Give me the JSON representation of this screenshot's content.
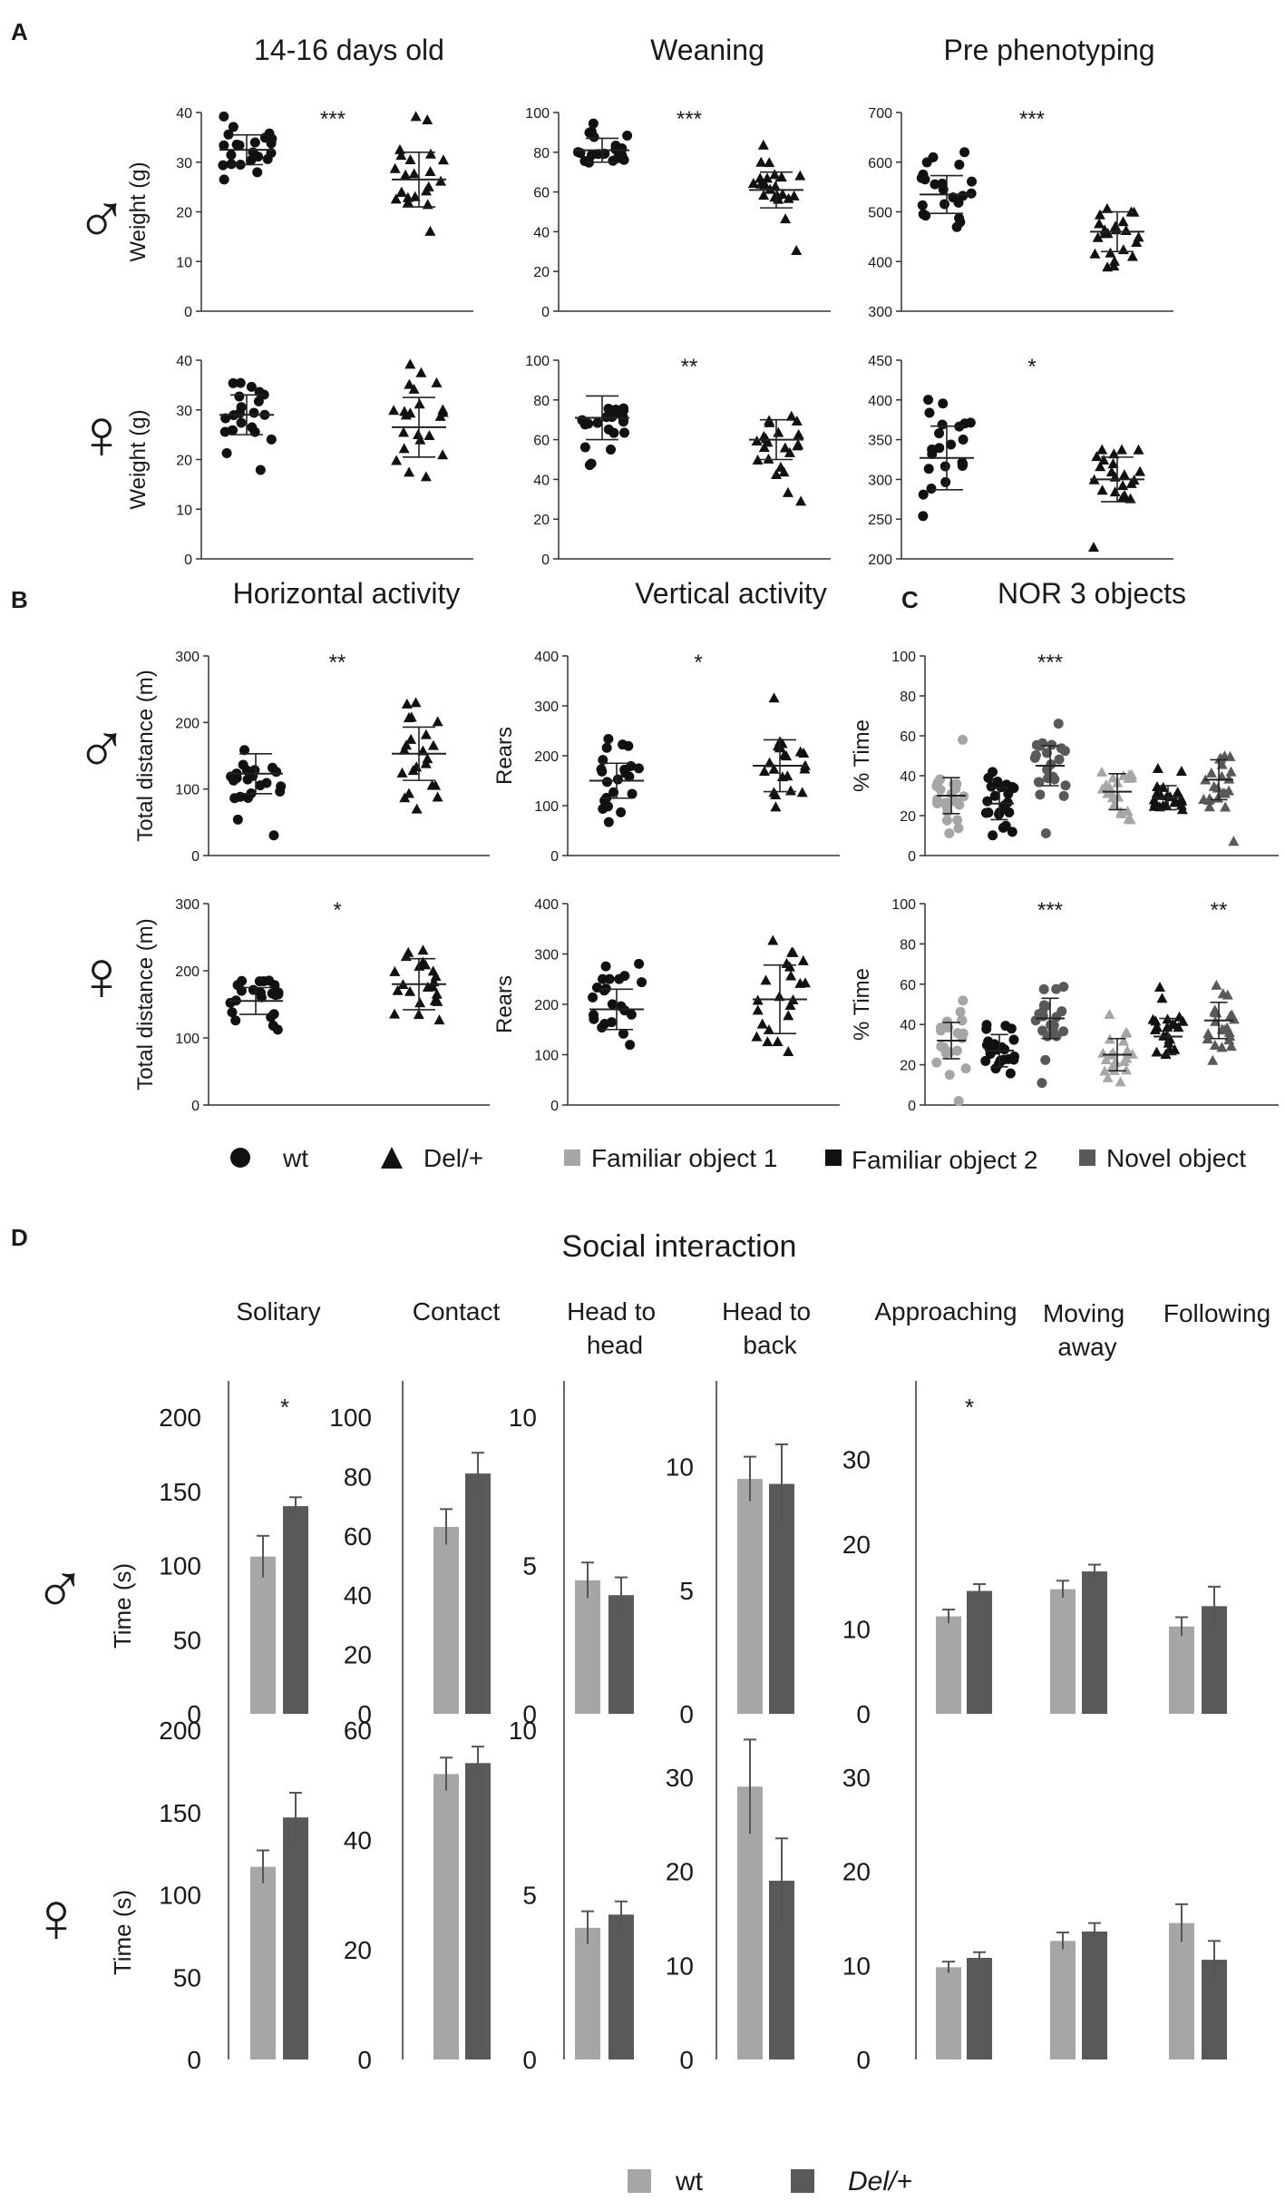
{
  "colors": {
    "wt_bar": "#a6a6a6",
    "del_bar": "#595959",
    "familiar1": "#a6a6a6",
    "familiar2": "#111111",
    "novel": "#595959",
    "axis": "#333333"
  },
  "figure": {
    "panel_labels": [
      "A",
      "B",
      "C",
      "D"
    ],
    "male_symbol": "♂",
    "female_symbol": "♀",
    "panelA": {
      "titles": [
        "14-16 days old",
        "Weaning",
        "Pre phenotyping"
      ],
      "ylabel": "Weight (g)"
    },
    "panelB": {
      "titles": [
        "Horizontal activity",
        "Vertical activity"
      ],
      "ylabels": [
        "Total distance (m)",
        "Rears"
      ]
    },
    "panelC": {
      "title": "NOR 3 objects",
      "ylabel": "% Time"
    },
    "legend1": {
      "wt": "wt",
      "del": "Del/+",
      "fam1": "Familiar object 1",
      "fam2": "Familiar object 2",
      "novel": "Novel object"
    },
    "panelD": {
      "title": "Social interaction",
      "categories": [
        "Solitary",
        "Contact",
        "Head to head",
        "Head to back",
        "Approaching",
        "Moving away",
        "Following"
      ],
      "ylabel": "Time (s)"
    },
    "legend2": {
      "wt": "wt",
      "del": "Del/+"
    }
  },
  "chart_data": [
    {
      "id": "a-m-1416",
      "type": "scatter",
      "title": "14-16 days old",
      "sex": "male",
      "ylabel": "Weight (g)",
      "ylim": [
        0,
        40
      ],
      "yticks": [
        0,
        10,
        20,
        30,
        40
      ],
      "groups": [
        {
          "name": "wt",
          "mean": 32.5,
          "sd": 3
        },
        {
          "name": "Del/+",
          "mean": 26.5,
          "sd": 5.5
        }
      ],
      "significance": "***"
    },
    {
      "id": "a-m-wean",
      "type": "scatter",
      "title": "Weaning",
      "sex": "male",
      "ylabel": "Weight (g)",
      "ylim": [
        0,
        100
      ],
      "yticks": [
        0,
        20,
        40,
        60,
        80,
        100
      ],
      "groups": [
        {
          "name": "wt",
          "mean": 81,
          "sd": 6
        },
        {
          "name": "Del/+",
          "mean": 61,
          "sd": 9
        }
      ],
      "significance": "***"
    },
    {
      "id": "a-m-pre",
      "type": "scatter",
      "title": "Pre phenotyping",
      "sex": "male",
      "ylabel": "Weight (g)",
      "ylim": [
        300,
        700
      ],
      "yticks": [
        300,
        400,
        500,
        600,
        700
      ],
      "groups": [
        {
          "name": "wt",
          "mean": 535,
          "sd": 38
        },
        {
          "name": "Del/+",
          "mean": 460,
          "sd": 40
        }
      ],
      "significance": "***"
    },
    {
      "id": "a-f-1416",
      "type": "scatter",
      "title": "14-16 days old",
      "sex": "female",
      "ylabel": "Weight (g)",
      "ylim": [
        0,
        40
      ],
      "yticks": [
        0,
        10,
        20,
        30,
        40
      ],
      "groups": [
        {
          "name": "wt",
          "mean": 29,
          "sd": 4
        },
        {
          "name": "Del/+",
          "mean": 26.5,
          "sd": 6
        }
      ],
      "significance": ""
    },
    {
      "id": "a-f-wean",
      "type": "scatter",
      "title": "Weaning",
      "sex": "female",
      "ylabel": "Weight (g)",
      "ylim": [
        0,
        100
      ],
      "yticks": [
        0,
        20,
        40,
        60,
        80,
        100
      ],
      "groups": [
        {
          "name": "wt",
          "mean": 71,
          "sd": 11
        },
        {
          "name": "Del/+",
          "mean": 60,
          "sd": 10
        }
      ],
      "significance": "**"
    },
    {
      "id": "a-f-pre",
      "type": "scatter",
      "title": "Pre phenotyping",
      "sex": "female",
      "ylabel": "Weight (g)",
      "ylim": [
        200,
        450
      ],
      "yticks": [
        200,
        250,
        300,
        350,
        400,
        450
      ],
      "groups": [
        {
          "name": "wt",
          "mean": 327,
          "sd": 40
        },
        {
          "name": "Del/+",
          "mean": 300,
          "sd": 28
        }
      ],
      "significance": "*"
    },
    {
      "id": "b-m-horiz",
      "type": "scatter",
      "title": "Horizontal activity",
      "sex": "male",
      "ylabel": "Total distance (m)",
      "ylim": [
        0,
        300
      ],
      "yticks": [
        0,
        100,
        200,
        300
      ],
      "groups": [
        {
          "name": "wt",
          "mean": 123,
          "sd": 30
        },
        {
          "name": "Del/+",
          "mean": 153,
          "sd": 40
        }
      ],
      "significance": "**"
    },
    {
      "id": "b-m-vert",
      "type": "scatter",
      "title": "Vertical activity",
      "sex": "male",
      "ylabel": "Rears",
      "ylim": [
        0,
        400
      ],
      "yticks": [
        0,
        100,
        200,
        300,
        400
      ],
      "groups": [
        {
          "name": "wt",
          "mean": 150,
          "sd": 35
        },
        {
          "name": "Del/+",
          "mean": 180,
          "sd": 52
        }
      ],
      "significance": "*"
    },
    {
      "id": "b-f-horiz",
      "type": "scatter",
      "title": "Horizontal activity",
      "sex": "female",
      "ylabel": "Total distance (m)",
      "ylim": [
        0,
        300
      ],
      "yticks": [
        0,
        100,
        200,
        300
      ],
      "groups": [
        {
          "name": "wt",
          "mean": 155,
          "sd": 20
        },
        {
          "name": "Del/+",
          "mean": 180,
          "sd": 38
        }
      ],
      "significance": "*"
    },
    {
      "id": "b-f-vert",
      "type": "scatter",
      "title": "Vertical activity",
      "sex": "female",
      "ylabel": "Rears",
      "ylim": [
        0,
        400
      ],
      "yticks": [
        0,
        100,
        200,
        300,
        400
      ],
      "groups": [
        {
          "name": "wt",
          "mean": 190,
          "sd": 40
        },
        {
          "name": "Del/+",
          "mean": 210,
          "sd": 68
        }
      ],
      "significance": ""
    },
    {
      "id": "c-m-nor",
      "type": "scatter",
      "title": "NOR 3 objects",
      "sex": "male",
      "ylabel": "% Time",
      "ylim": [
        0,
        100
      ],
      "yticks": [
        0,
        20,
        40,
        60,
        80,
        100
      ],
      "groups": [
        {
          "name": "wt Familiar object 1",
          "mean": 30,
          "sd": 9
        },
        {
          "name": "wt Familiar object 2",
          "mean": 26,
          "sd": 8
        },
        {
          "name": "wt Novel object",
          "mean": 45,
          "sd": 10
        },
        {
          "name": "Del/+ Familiar object 1",
          "mean": 32,
          "sd": 9
        },
        {
          "name": "Del/+ Familiar object 2",
          "mean": 29,
          "sd": 6
        },
        {
          "name": "Del/+ Novel object",
          "mean": 38,
          "sd": 10
        }
      ],
      "significance": "***"
    },
    {
      "id": "c-f-nor",
      "type": "scatter",
      "title": "NOR 3 objects",
      "sex": "female",
      "ylabel": "% Time",
      "ylim": [
        0,
        100
      ],
      "yticks": [
        0,
        20,
        40,
        60,
        80,
        100
      ],
      "groups": [
        {
          "name": "wt Familiar object 1",
          "mean": 32,
          "sd": 9
        },
        {
          "name": "wt Familiar object 2",
          "mean": 27,
          "sd": 8
        },
        {
          "name": "wt Novel object",
          "mean": 43,
          "sd": 10
        },
        {
          "name": "Del/+ Familiar object 1",
          "mean": 25,
          "sd": 8
        },
        {
          "name": "Del/+ Familiar object 2",
          "mean": 34,
          "sd": 9
        },
        {
          "name": "Del/+ Novel object",
          "mean": 42,
          "sd": 9
        }
      ],
      "significance": "***  **"
    },
    {
      "id": "d-m-social",
      "type": "bar",
      "title": "Social interaction",
      "sex": "male",
      "ylabel": "Time (s)",
      "series": [
        {
          "name": "wt"
        },
        {
          "name": "Del/+"
        }
      ],
      "subplots": [
        {
          "category": "Solitary",
          "ylim": [
            0,
            200
          ],
          "yticks": [
            0,
            50,
            100,
            150,
            200
          ],
          "wt": 106,
          "wt_err": 14,
          "del": 140,
          "del_err": 6,
          "sig": "*"
        },
        {
          "category": "Contact",
          "ylim": [
            0,
            100
          ],
          "yticks": [
            0,
            20,
            40,
            60,
            80,
            100
          ],
          "wt": 63,
          "wt_err": 6,
          "del": 81,
          "del_err": 7,
          "sig": ""
        },
        {
          "category": "Head to head",
          "ylim": [
            0,
            10
          ],
          "yticks": [
            0,
            5,
            10
          ],
          "wt": 4.5,
          "wt_err": 0.6,
          "del": 4.0,
          "del_err": 0.6,
          "sig": ""
        },
        {
          "category": "Head to back",
          "ylim": [
            0,
            12
          ],
          "yticks": [
            0,
            5,
            10
          ],
          "wt": 9.5,
          "wt_err": 0.9,
          "del": 9.3,
          "del_err": 1.6,
          "sig": ""
        },
        {
          "category": "Approaching",
          "ylim": [
            0,
            35
          ],
          "yticks": [
            0,
            10,
            20,
            30
          ],
          "wt": 11.5,
          "wt_err": 0.8,
          "del": 14.5,
          "del_err": 0.8,
          "sig": "*"
        },
        {
          "category": "Moving away",
          "ylim": [
            0,
            35
          ],
          "yticks": [],
          "wt": 14.7,
          "wt_err": 1.0,
          "del": 16.8,
          "del_err": 0.8,
          "sig": ""
        },
        {
          "category": "Following",
          "ylim": [
            0,
            35
          ],
          "yticks": [],
          "wt": 10.3,
          "wt_err": 1.1,
          "del": 12.7,
          "del_err": 2.3,
          "sig": ""
        }
      ]
    },
    {
      "id": "d-f-social",
      "type": "bar",
      "title": "Social interaction",
      "sex": "female",
      "ylabel": "Time (s)",
      "series": [
        {
          "name": "wt"
        },
        {
          "name": "Del/+"
        }
      ],
      "subplots": [
        {
          "category": "Solitary",
          "ylim": [
            0,
            200
          ],
          "yticks": [
            0,
            50,
            100,
            150,
            200
          ],
          "wt": 117,
          "wt_err": 10,
          "del": 147,
          "del_err": 15,
          "sig": ""
        },
        {
          "category": "Contact",
          "ylim": [
            0,
            60
          ],
          "yticks": [
            0,
            20,
            40,
            60
          ],
          "wt": 52,
          "wt_err": 3,
          "del": 54,
          "del_err": 3,
          "sig": ""
        },
        {
          "category": "Head to head",
          "ylim": [
            0,
            10
          ],
          "yticks": [
            0,
            5,
            10
          ],
          "wt": 4.0,
          "wt_err": 0.5,
          "del": 4.4,
          "del_err": 0.4,
          "sig": ""
        },
        {
          "category": "Head to back",
          "ylim": [
            0,
            35
          ],
          "yticks": [
            0,
            10,
            20,
            30
          ],
          "wt": 29,
          "wt_err": 5,
          "del": 19,
          "del_err": 4.5,
          "sig": ""
        },
        {
          "category": "Approaching",
          "ylim": [
            0,
            35
          ],
          "yticks": [
            0,
            10,
            20,
            30
          ],
          "wt": 9.8,
          "wt_err": 0.6,
          "del": 10.8,
          "del_err": 0.6,
          "sig": ""
        },
        {
          "category": "Moving away",
          "ylim": [
            0,
            35
          ],
          "yticks": [],
          "wt": 12.6,
          "wt_err": 0.9,
          "del": 13.6,
          "del_err": 0.9,
          "sig": ""
        },
        {
          "category": "Following",
          "ylim": [
            0,
            35
          ],
          "yticks": [],
          "wt": 14.5,
          "wt_err": 2.0,
          "del": 10.6,
          "del_err": 2.0,
          "sig": ""
        }
      ]
    }
  ]
}
